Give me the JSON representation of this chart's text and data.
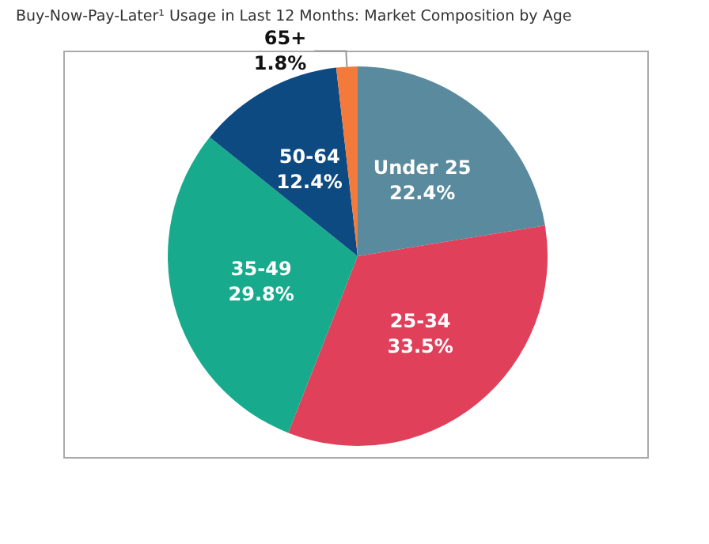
{
  "chart_data": {
    "type": "pie",
    "title": "Buy-Now-Pay-Later¹ Usage in Last 12 Months: Market Composition by Age",
    "categories": [
      "Under 25",
      "25-34",
      "35-49",
      "50-64",
      "65+"
    ],
    "values": [
      22.4,
      33.5,
      29.8,
      12.4,
      1.8
    ],
    "colors": [
      "#5a8a9e",
      "#e0405a",
      "#17aa8c",
      "#0e4a82",
      "#f37a3a"
    ],
    "value_labels": [
      "22.4%",
      "33.5%",
      "29.8%",
      "12.4%",
      "1.8%"
    ]
  }
}
